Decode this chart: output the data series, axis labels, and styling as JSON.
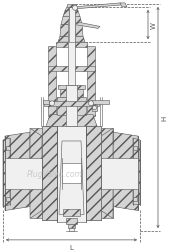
{
  "bg_color": "#ffffff",
  "line_color": "#555555",
  "hatch_color": "#888888",
  "watermark": "PlugValve.com",
  "watermark_color": "#bbbbbb",
  "dim_W_label": "W",
  "dim_H_label": "H",
  "dim_L_label": "L",
  "body_fc": "#d4d4d4",
  "light_fc": "#f0f0f0",
  "white": "#ffffff"
}
